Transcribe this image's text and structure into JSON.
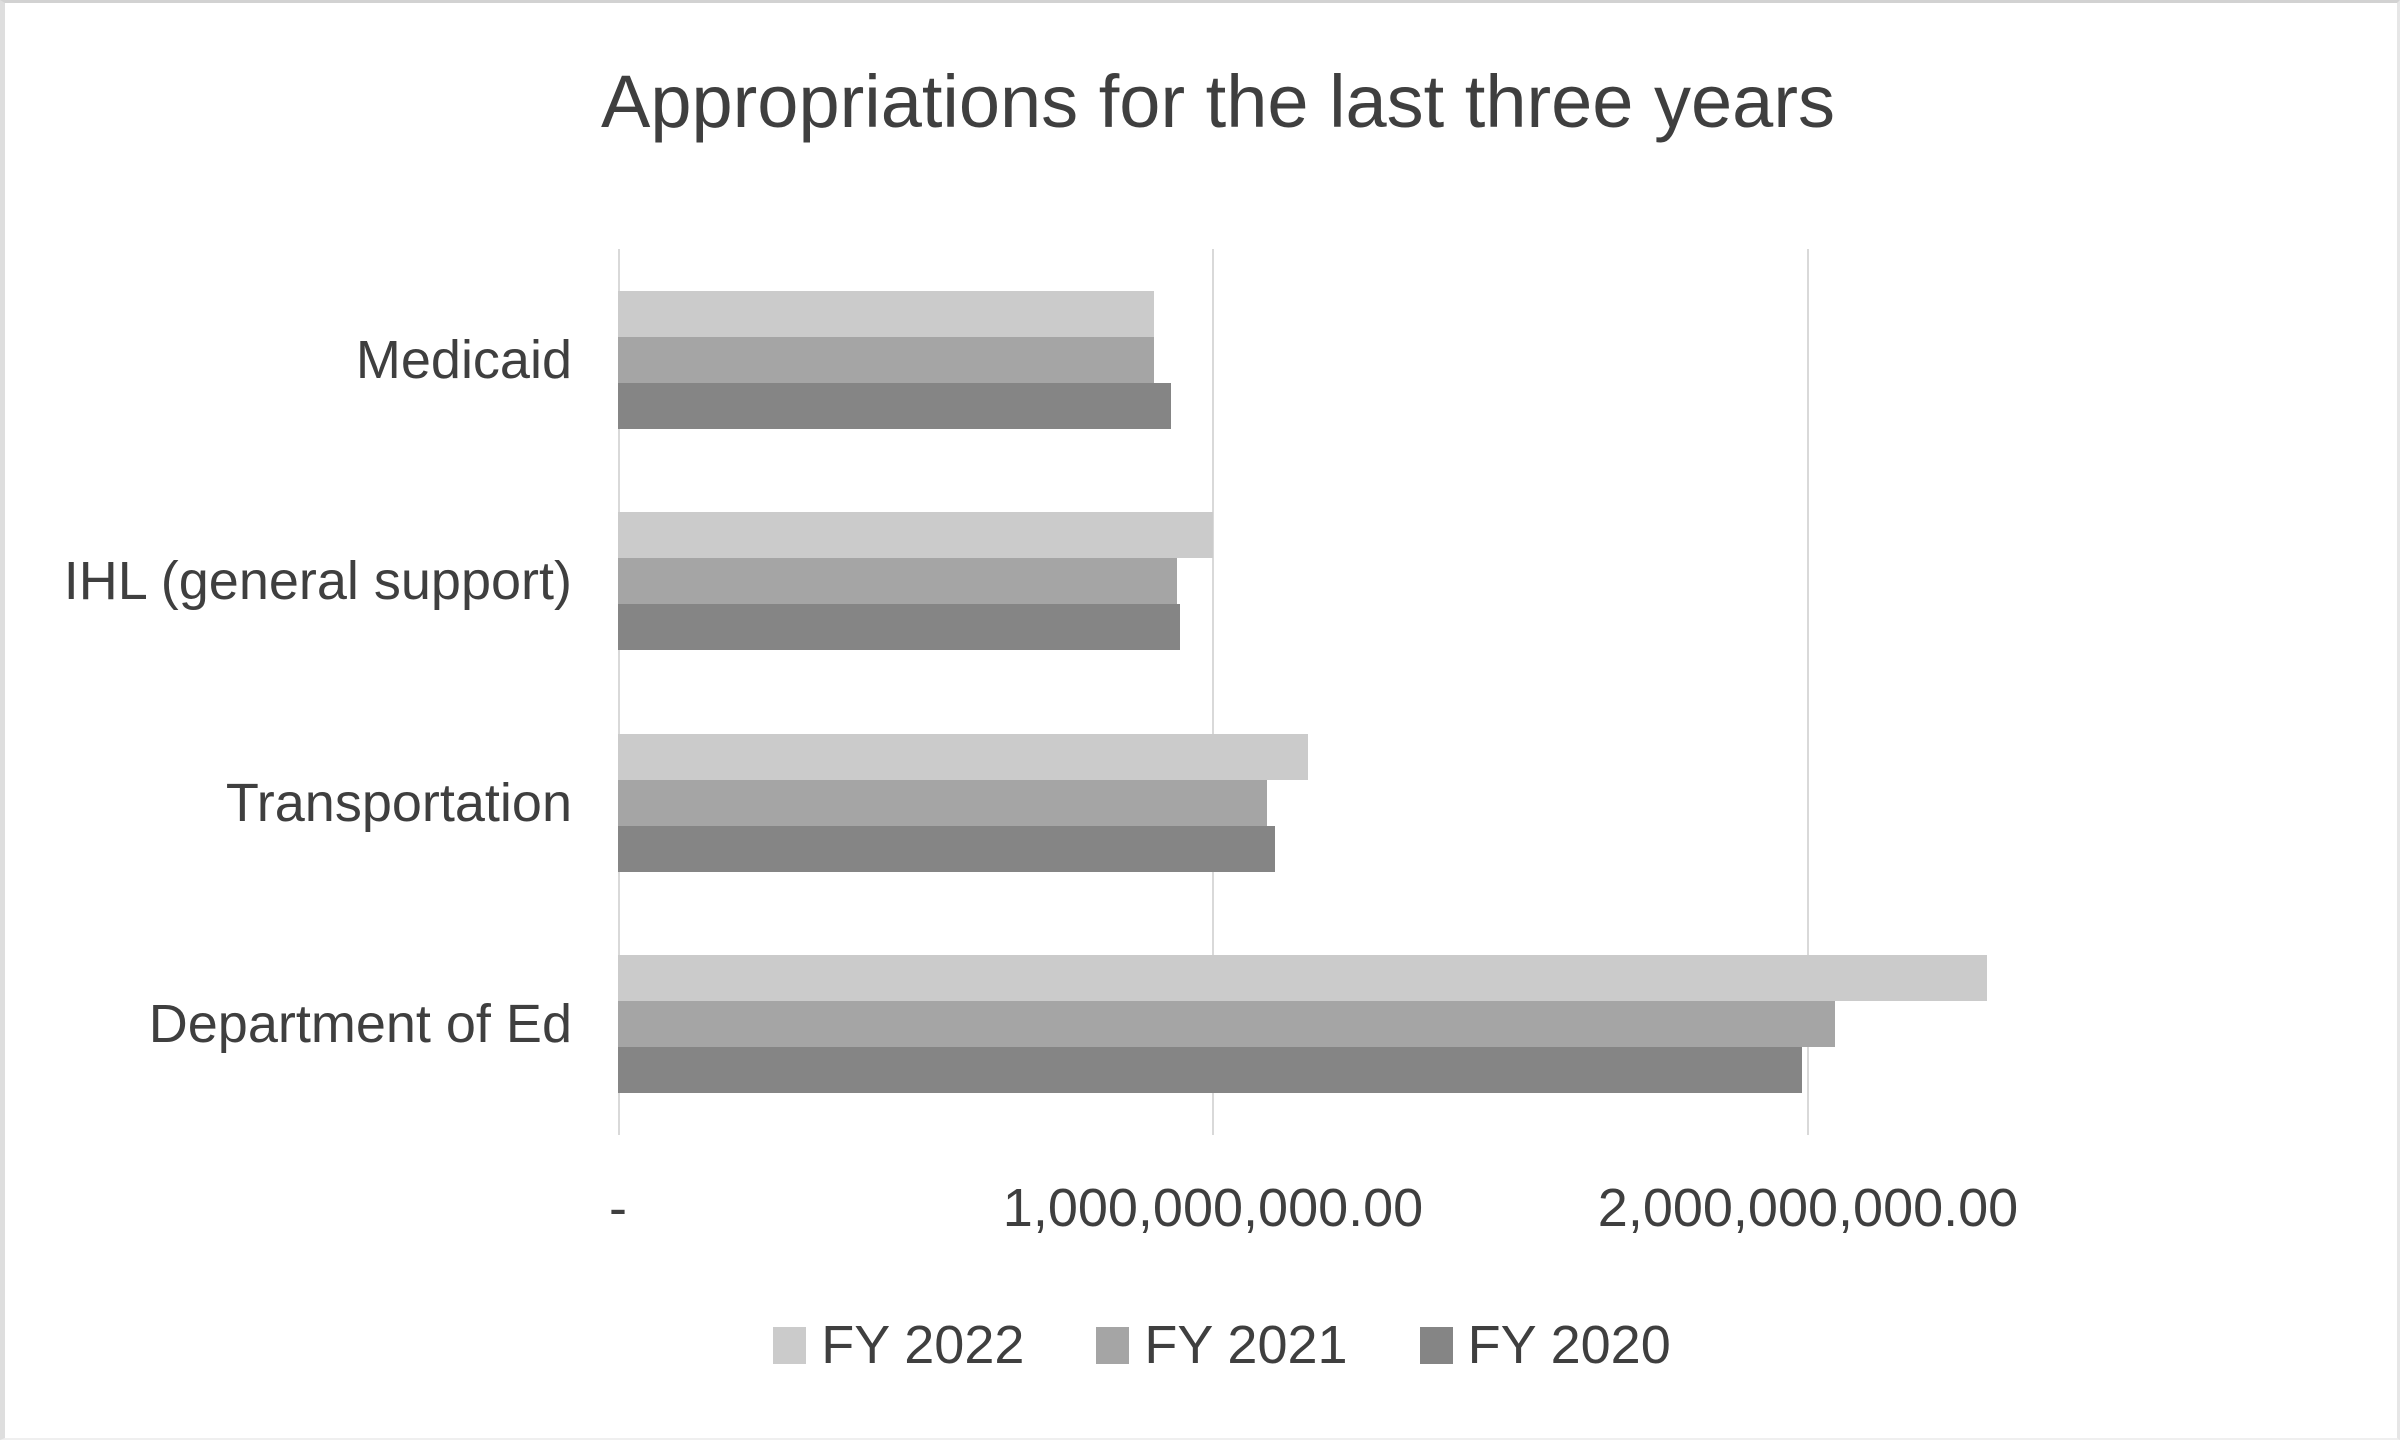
{
  "title": "Appropriations for the last three years",
  "colors": {
    "text": "#3f3f3f",
    "grid": "#d9d9d9",
    "background": "#ffffff",
    "fy2022": "#cbcbcb",
    "fy2021": "#a5a5a5",
    "fy2020": "#858585"
  },
  "chart_data": {
    "type": "bar",
    "orientation": "horizontal",
    "title": "Appropriations for the last three years",
    "categories": [
      "Medicaid",
      "IHL (general support)",
      "Transportation",
      "Department of Ed"
    ],
    "series": [
      {
        "name": "FY 2022",
        "color": "#cbcbcb",
        "values": [
          900000000,
          1000000000,
          1160000000,
          2300000000
        ]
      },
      {
        "name": "FY 2021",
        "color": "#a5a5a5",
        "values": [
          900000000,
          940000000,
          1090000000,
          2045000000
        ]
      },
      {
        "name": "FY 2020",
        "color": "#858585",
        "values": [
          930000000,
          945000000,
          1105000000,
          1990000000
        ]
      }
    ],
    "x_axis": {
      "min": 0,
      "max": 2566000000,
      "ticks": [
        {
          "value": 0,
          "label": "-"
        },
        {
          "value": 1000000000,
          "label": "1,000,000,000.00"
        },
        {
          "value": 2000000000,
          "label": "2,000,000,000.00"
        }
      ]
    },
    "ylabel": "",
    "xlabel": "",
    "grid": true,
    "legend_position": "bottom"
  }
}
